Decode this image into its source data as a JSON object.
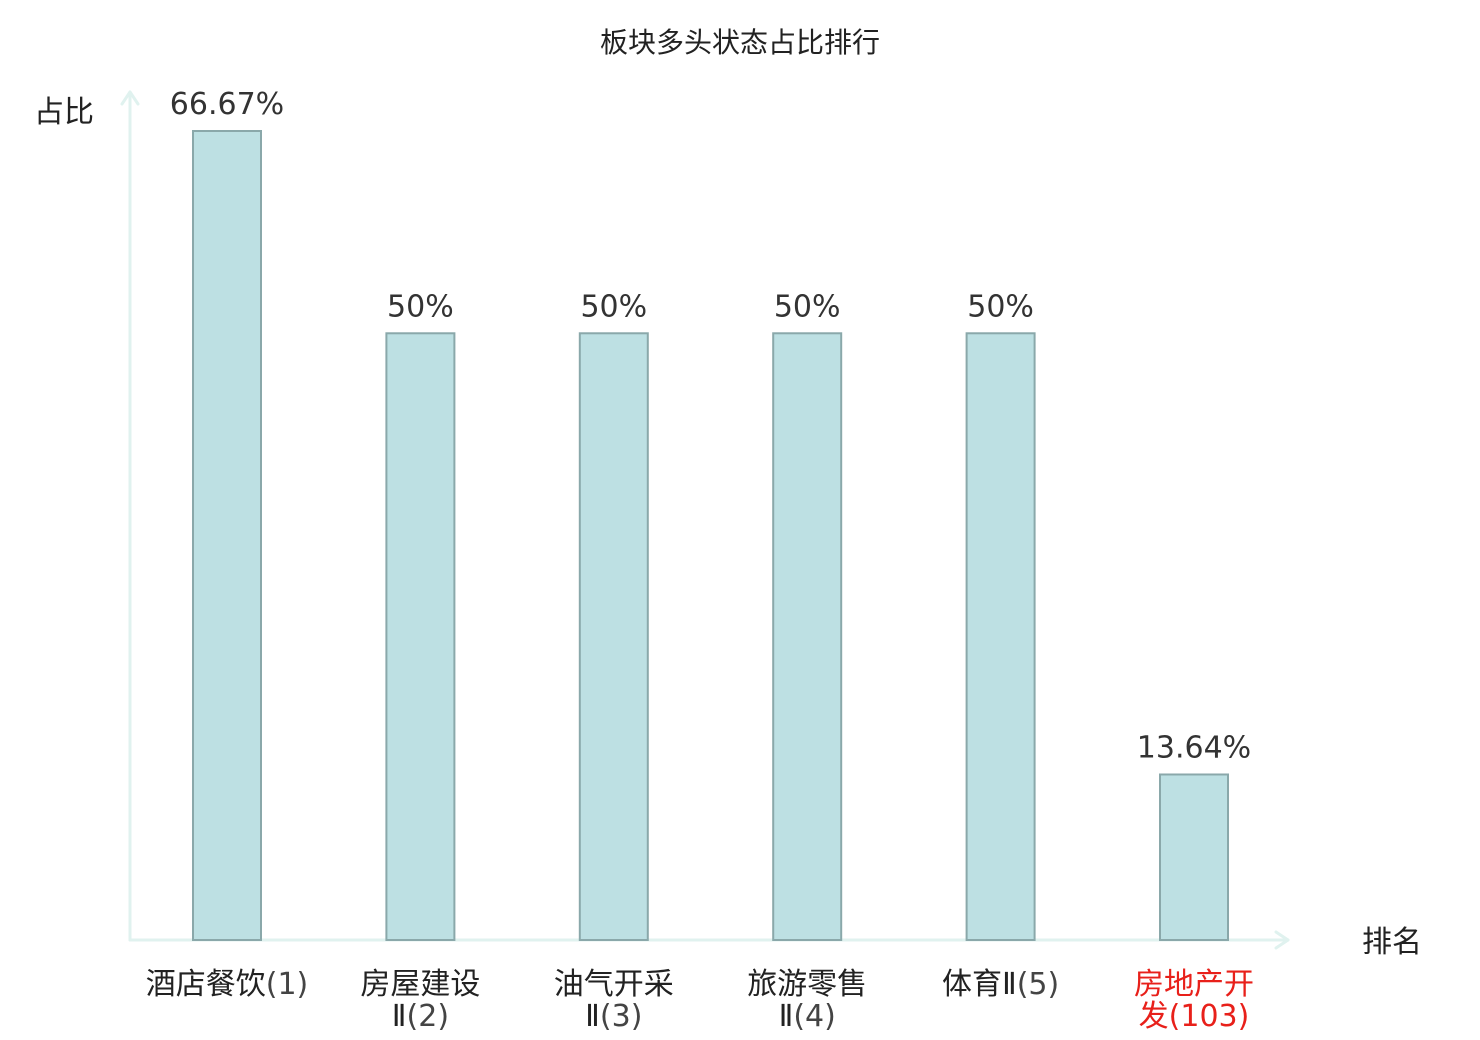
{
  "chart_data": {
    "type": "bar",
    "title": "板块多头状态占比排行",
    "xlabel": "排名",
    "ylabel": "占比",
    "categories": [
      {
        "name": "酒店餐饮",
        "rank": "(1)",
        "lines": [
          {
            "name": "酒店餐饮",
            "rank": "(1)"
          }
        ]
      },
      {
        "name": "房屋建设Ⅱ",
        "rank": "(2)",
        "lines": [
          {
            "name": "房屋建设",
            "rank": ""
          },
          {
            "name": "Ⅱ",
            "rank": "(2)"
          }
        ]
      },
      {
        "name": "油气开采Ⅱ",
        "rank": "(3)",
        "lines": [
          {
            "name": "油气开采",
            "rank": ""
          },
          {
            "name": "Ⅱ",
            "rank": "(3)"
          }
        ]
      },
      {
        "name": "旅游零售Ⅱ",
        "rank": "(4)",
        "lines": [
          {
            "name": "旅游零售",
            "rank": ""
          },
          {
            "name": "Ⅱ",
            "rank": "(4)"
          }
        ]
      },
      {
        "name": "体育Ⅱ",
        "rank": "(5)",
        "lines": [
          {
            "name": "体育Ⅱ",
            "rank": "(5)"
          }
        ]
      },
      {
        "name": "房地产开发",
        "rank": "(103)",
        "lines": [
          {
            "name": "房地产开",
            "rank": ""
          },
          {
            "name": "发",
            "rank": "(103)"
          }
        ]
      }
    ],
    "values": [
      66.67,
      50,
      50,
      50,
      50,
      13.64
    ],
    "value_labels": [
      "66.67%",
      "50%",
      "50%",
      "50%",
      "50%",
      "13.64%"
    ],
    "highlight": [
      false,
      false,
      false,
      false,
      false,
      true
    ],
    "ylim": [
      0,
      70
    ],
    "grid": false,
    "legend": "none",
    "colors": {
      "bar_fill": "#bde0e3",
      "bar_stroke": "#8aa8aa",
      "axis": "#e0f2ef",
      "text": "#222222",
      "rank_text": "#444444",
      "highlight": "#e8201a"
    }
  }
}
